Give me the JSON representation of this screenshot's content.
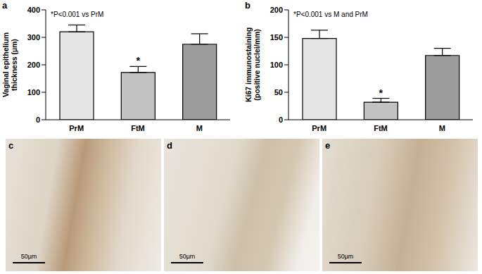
{
  "chart_data": [
    {
      "panel": "a",
      "type": "bar",
      "ylabel": "Vaginal epithelium thickness (µm)",
      "annotation": "*P<0.001 vs PrM",
      "categories": [
        "PrM",
        "FtM",
        "M"
      ],
      "values": [
        320,
        172,
        275
      ],
      "errors": [
        25,
        22,
        38
      ],
      "significance": [
        null,
        "*",
        null
      ],
      "colors": [
        "#e6e6e6",
        "#c2c2c2",
        "#9c9c9c"
      ],
      "ylim": [
        0,
        400
      ],
      "yticks": [
        0,
        100,
        200,
        300,
        400
      ]
    },
    {
      "panel": "b",
      "type": "bar",
      "ylabel": "Ki67 immunostaining (positive nuclei/mm)",
      "annotation": "*P<0.001 vs M and PrM",
      "categories": [
        "PrM",
        "FtM",
        "M"
      ],
      "values": [
        148,
        32,
        117
      ],
      "errors": [
        15,
        7,
        13
      ],
      "significance": [
        null,
        "*",
        null
      ],
      "colors": [
        "#e6e6e6",
        "#c2c2c2",
        "#9c9c9c"
      ],
      "ylim": [
        0,
        200
      ],
      "yticks": [
        0,
        50,
        100,
        150,
        200
      ]
    }
  ],
  "images": [
    {
      "panel": "c",
      "scale_bar": "50µm"
    },
    {
      "panel": "d",
      "scale_bar": "50µm"
    },
    {
      "panel": "e",
      "scale_bar": "50µm"
    }
  ]
}
